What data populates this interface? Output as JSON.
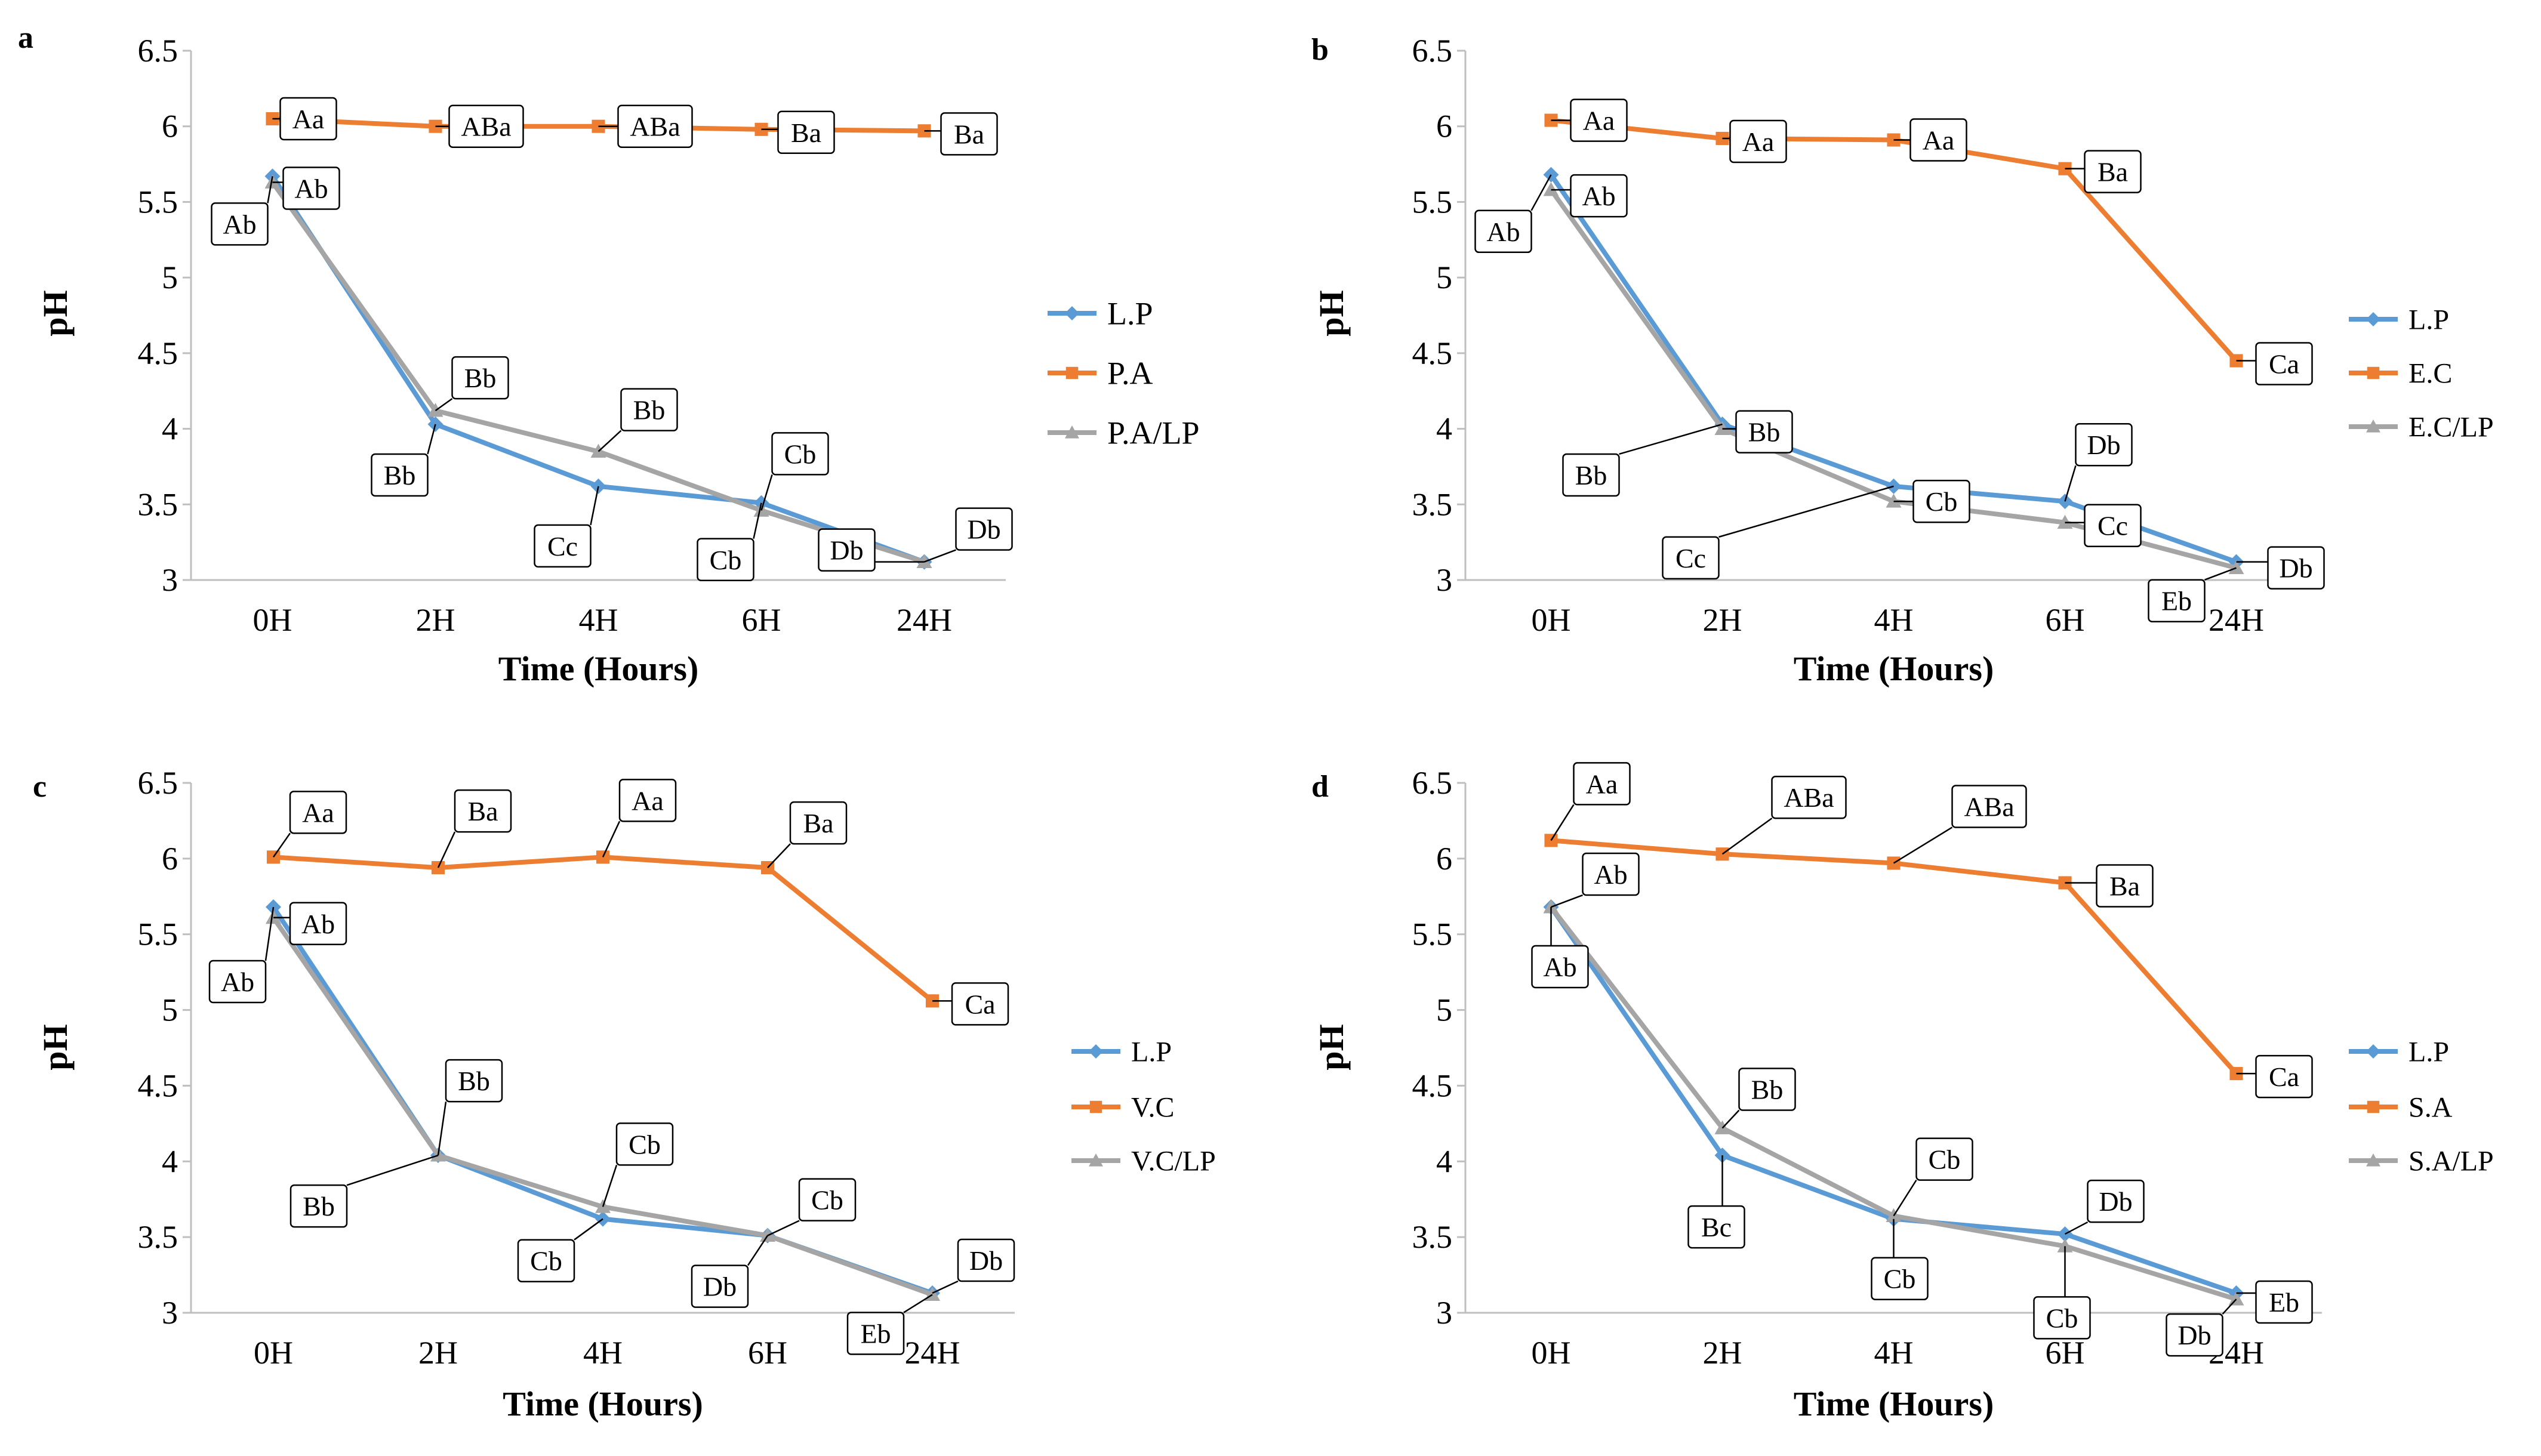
{
  "colors": {
    "lp": "#5b9bd5",
    "treatment": "#ed7d31",
    "combo": "#a5a5a5"
  },
  "chart_data": [
    {
      "panel": "a",
      "type": "line",
      "categories": [
        "0H",
        "2H",
        "4H",
        "6H",
        "24H"
      ],
      "xlabel": "Time (Hours)",
      "ylabel": "pH",
      "ylim": [
        3,
        6.5
      ],
      "yticks": [
        "3",
        "3.5",
        "4",
        "4.5",
        "5",
        "5.5",
        "6",
        "6.5"
      ],
      "legend_position": "right",
      "series": [
        {
          "name": "L.P",
          "marker": "diamond",
          "color_key": "lp",
          "values": [
            5.67,
            4.03,
            3.62,
            3.51,
            3.12
          ],
          "labels": [
            "Ab",
            "Bb",
            "Cc",
            "Cb",
            "Db"
          ]
        },
        {
          "name": "P.A",
          "marker": "square",
          "color_key": "treatment",
          "values": [
            6.05,
            6.0,
            6.0,
            5.98,
            5.97
          ],
          "labels": [
            "Aa",
            "ABa",
            "ABa",
            "Ba",
            "Ba"
          ]
        },
        {
          "name": "P.A/LP",
          "marker": "triangle",
          "color_key": "combo",
          "values": [
            5.63,
            4.12,
            3.85,
            3.46,
            3.12
          ],
          "labels": [
            "Ab",
            "Bb",
            "Bb",
            "Cb",
            "Db"
          ]
        }
      ]
    },
    {
      "panel": "b",
      "type": "line",
      "categories": [
        "0H",
        "2H",
        "4H",
        "6H",
        "24H"
      ],
      "xlabel": "Time (Hours)",
      "ylabel": "pH",
      "ylim": [
        3,
        6.5
      ],
      "yticks": [
        "3",
        "3.5",
        "4",
        "4.5",
        "5",
        "5.5",
        "6",
        "6.5"
      ],
      "legend_position": "right",
      "series": [
        {
          "name": "L.P",
          "marker": "diamond",
          "color_key": "lp",
          "values": [
            5.68,
            4.03,
            3.62,
            3.52,
            3.12
          ],
          "labels": [
            "Ab",
            "Bb",
            "Cc",
            "Db",
            "Db"
          ]
        },
        {
          "name": "E.C",
          "marker": "square",
          "color_key": "treatment",
          "values": [
            6.04,
            5.92,
            5.91,
            5.72,
            4.45
          ],
          "labels": [
            "Aa",
            "Aa",
            "Aa",
            "Ba",
            "Ca"
          ]
        },
        {
          "name": "E.C/LP",
          "marker": "triangle",
          "color_key": "combo",
          "values": [
            5.58,
            4.0,
            3.52,
            3.38,
            3.08
          ],
          "labels": [
            "Ab",
            "Bb",
            "Cb",
            "Cc",
            "Eb"
          ]
        }
      ]
    },
    {
      "panel": "c",
      "type": "line",
      "categories": [
        "0H",
        "2H",
        "4H",
        "6H",
        "24H"
      ],
      "xlabel": "Time (Hours)",
      "ylabel": "pH",
      "ylim": [
        3,
        6.5
      ],
      "yticks": [
        "3",
        "3.5",
        "4",
        "4.5",
        "5",
        "5.5",
        "6",
        "6.5"
      ],
      "legend_position": "right",
      "series": [
        {
          "name": "L.P",
          "marker": "diamond",
          "color_key": "lp",
          "values": [
            5.68,
            4.04,
            3.62,
            3.51,
            3.13
          ],
          "labels": [
            "Ab",
            "Bb",
            "Cb",
            "Cb",
            "Db"
          ]
        },
        {
          "name": "V.C",
          "marker": "square",
          "color_key": "treatment",
          "values": [
            6.01,
            5.94,
            6.01,
            5.94,
            5.06
          ],
          "labels": [
            "Aa",
            "Ba",
            "Aa",
            "Ba",
            "Ca"
          ]
        },
        {
          "name": "V.C/LP",
          "marker": "triangle",
          "color_key": "combo",
          "values": [
            5.61,
            4.04,
            3.7,
            3.51,
            3.12
          ],
          "labels": [
            "Ab",
            "Bb",
            "Cb",
            "Db",
            "Eb"
          ]
        }
      ]
    },
    {
      "panel": "d",
      "type": "line",
      "categories": [
        "0H",
        "2H",
        "4H",
        "6H",
        "24H"
      ],
      "xlabel": "Time (Hours)",
      "ylabel": "pH",
      "ylim": [
        3,
        6.5
      ],
      "yticks": [
        "3",
        "3.5",
        "4",
        "4.5",
        "5",
        "5.5",
        "6",
        "6.5"
      ],
      "legend_position": "right",
      "series": [
        {
          "name": "L.P",
          "marker": "diamond",
          "color_key": "lp",
          "values": [
            5.68,
            4.04,
            3.62,
            3.52,
            3.13
          ],
          "labels": [
            "Ab",
            "Bc",
            "Cb",
            "Db",
            "Eb"
          ]
        },
        {
          "name": "S.A",
          "marker": "square",
          "color_key": "treatment",
          "values": [
            6.12,
            6.03,
            5.97,
            5.84,
            4.58
          ],
          "labels": [
            "Aa",
            "ABa",
            "ABa",
            "Ba",
            "Ca"
          ]
        },
        {
          "name": "S.A/LP",
          "marker": "triangle",
          "color_key": "combo",
          "values": [
            5.68,
            4.22,
            3.64,
            3.44,
            3.09
          ],
          "labels": [
            "Ab",
            "Bb",
            "Cb",
            "Cb",
            "Db"
          ]
        }
      ]
    }
  ]
}
